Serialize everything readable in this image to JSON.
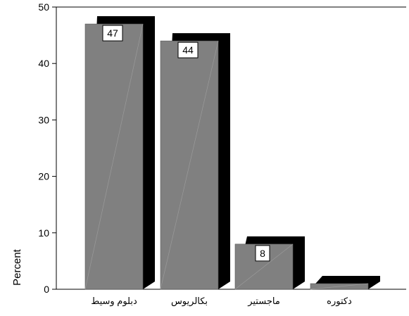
{
  "chart_data": {
    "type": "bar",
    "style": "3d",
    "categories": [
      "دبلوم وسيط",
      "بكالريوس",
      "ماجستير",
      "دكتوره"
    ],
    "values": [
      47,
      44,
      8,
      1
    ],
    "data_labels": [
      "47",
      "44",
      "8",
      ""
    ],
    "ylabel": "Percent",
    "xlabel": "",
    "title": "",
    "ylim": [
      0,
      50
    ],
    "yticks": [
      0,
      10,
      20,
      30,
      40,
      50
    ],
    "grid": false,
    "legend": "none",
    "colors": {
      "bar_face": "#808080",
      "bar_shadow": "#000000",
      "axis": "#000000",
      "background": "#ffffff",
      "label_box": "#ffffff"
    }
  }
}
